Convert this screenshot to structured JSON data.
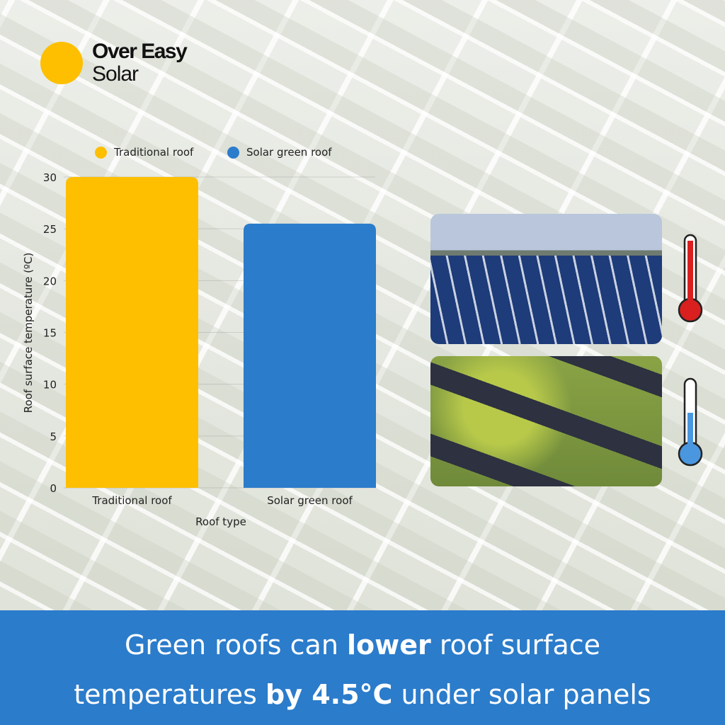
{
  "brand": {
    "line1": "Over Easy",
    "line2": "Solar",
    "dot_color": "#fdbf00"
  },
  "colors": {
    "traditional": "#fdbf00",
    "green": "#2b7ccb",
    "banner": "#2b7ccb"
  },
  "chart_data": {
    "type": "bar",
    "categories": [
      "Traditional roof",
      "Solar green roof"
    ],
    "values": [
      30,
      25.5
    ],
    "xlabel": "Roof type",
    "ylabel": "Roof surface temperature (ºC)",
    "ylim": [
      0,
      30
    ],
    "yticks": [
      0,
      5,
      10,
      15,
      20,
      25,
      30
    ],
    "legend": [
      "Traditional roof",
      "Solar green roof"
    ],
    "legend_position": "top",
    "grid": true
  },
  "icons": {
    "hot": "thermometer-hot-icon",
    "cool": "thermometer-cool-icon"
  },
  "banner": {
    "l1_pre": "Green roofs can ",
    "l1_bold": "lower",
    "l1_post": " roof surface",
    "l2_pre": "temperatures ",
    "l2_bold": "by 4.5°C",
    "l2_post": " under solar panels"
  }
}
